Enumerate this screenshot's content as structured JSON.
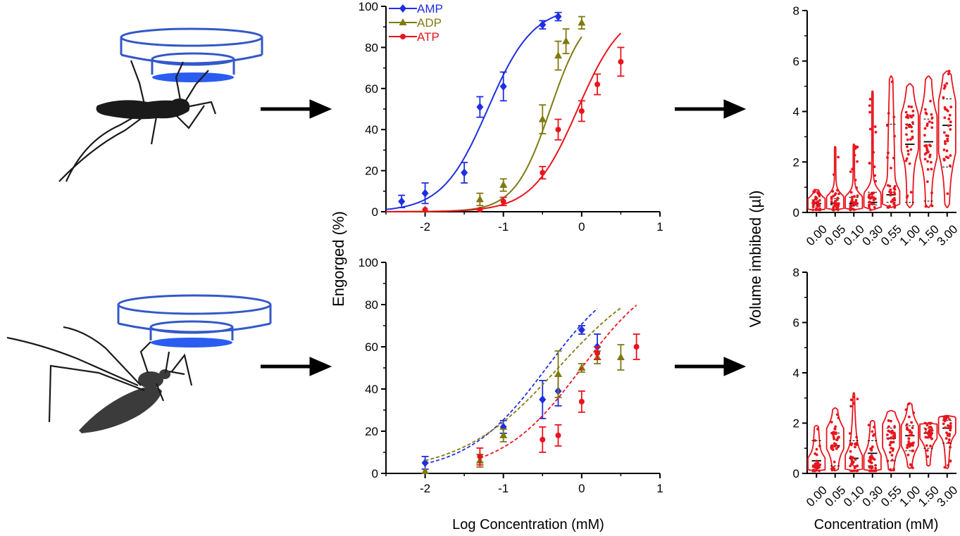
{
  "colors": {
    "amp": "#1f2ee0",
    "adp": "#7f7a10",
    "atp": "#e8141c",
    "violin": "#e8141c",
    "axis": "#000000",
    "silhouette": "#1a1a1a",
    "silhouette2": "#3b3b3b",
    "feeder": "#3358c9",
    "meal": "#2a5cf0"
  },
  "labels": {
    "left_ylabel": "Engorged (%)",
    "left_xlabel": "Log Concentration (mM)",
    "right_ylabel": "Volume imbibed (µl)",
    "right_xlabel": "Concentration (mM)"
  },
  "icons": [
    "mosquito-feeding-icon",
    "mosquito-resting-icon",
    "arrow-right-icon"
  ],
  "chart_data": [
    {
      "type": "line",
      "panel": "top-dose-response",
      "xlim": [
        -2.5,
        1
      ],
      "ylim": [
        0,
        100
      ],
      "xticks": [
        -2,
        -1,
        0,
        1
      ],
      "yticks": [
        0,
        20,
        40,
        60,
        80,
        100
      ],
      "legend": [
        "AMP",
        "ADP",
        "ATP"
      ],
      "series": [
        {
          "name": "AMP",
          "marker": "diamond",
          "key": "amp",
          "ec50": -1.2,
          "hill": 1.5,
          "points": [
            {
              "x": -2.3,
              "y": 5,
              "err": 3
            },
            {
              "x": -2.0,
              "y": 9,
              "err": 5
            },
            {
              "x": -1.5,
              "y": 19,
              "err": 5
            },
            {
              "x": -1.3,
              "y": 51,
              "err": 5
            },
            {
              "x": -1.0,
              "y": 61,
              "err": 7
            },
            {
              "x": -0.5,
              "y": 91,
              "err": 2
            },
            {
              "x": -0.3,
              "y": 95,
              "err": 2
            }
          ]
        },
        {
          "name": "ADP",
          "marker": "triangle",
          "key": "adp",
          "ec50": -0.4,
          "hill": 1.9,
          "points": [
            {
              "x": -2.0,
              "y": 1,
              "err": 0
            },
            {
              "x": -1.3,
              "y": 6,
              "err": 3
            },
            {
              "x": -1.0,
              "y": 13,
              "err": 3
            },
            {
              "x": -0.5,
              "y": 45,
              "err": 7
            },
            {
              "x": -0.3,
              "y": 76,
              "err": 7
            },
            {
              "x": -0.2,
              "y": 83,
              "err": 6
            },
            {
              "x": 0.0,
              "y": 92,
              "err": 3
            }
          ]
        },
        {
          "name": "ATP",
          "marker": "circle",
          "key": "atp",
          "ec50": -0.05,
          "hill": 1.5,
          "points": [
            {
              "x": -2.0,
              "y": 1,
              "err": 0
            },
            {
              "x": -1.3,
              "y": 1,
              "err": 0
            },
            {
              "x": -1.0,
              "y": 5,
              "err": 2
            },
            {
              "x": -0.5,
              "y": 19,
              "err": 3
            },
            {
              "x": -0.3,
              "y": 40,
              "err": 5
            },
            {
              "x": 0.0,
              "y": 49,
              "err": 5
            },
            {
              "x": 0.2,
              "y": 62,
              "err": 5
            },
            {
              "x": 0.5,
              "y": 73,
              "err": 7
            }
          ]
        }
      ]
    },
    {
      "type": "line",
      "panel": "bottom-dose-response",
      "xlim": [
        -2.5,
        1
      ],
      "ylim": [
        0,
        100
      ],
      "xticks": [
        -2,
        -1,
        0,
        1
      ],
      "yticks": [
        0,
        20,
        40,
        60,
        80,
        100
      ],
      "dashed_fits": true,
      "series": [
        {
          "name": "AMP",
          "marker": "diamond",
          "key": "amp",
          "ec50": -0.45,
          "hill": 0.85,
          "top": 100,
          "fit_xmax": 0.2,
          "points": [
            {
              "x": -2.0,
              "y": 5,
              "err": 3
            },
            {
              "x": -1.0,
              "y": 22,
              "err": 3
            },
            {
              "x": -0.5,
              "y": 35,
              "err": 9
            },
            {
              "x": -0.3,
              "y": 39,
              "err": 7
            },
            {
              "x": 0.0,
              "y": 68,
              "err": 2
            },
            {
              "x": 0.2,
              "y": 60,
              "err": 6
            }
          ]
        },
        {
          "name": "ADP",
          "marker": "triangle",
          "key": "adp",
          "ec50": -0.3,
          "hill": 0.7,
          "top": 100,
          "fit_xmax": 0.5,
          "points": [
            {
              "x": -2.0,
              "y": 1,
              "err": 0
            },
            {
              "x": -1.3,
              "y": 6,
              "err": 3
            },
            {
              "x": -1.0,
              "y": 18,
              "err": 3
            },
            {
              "x": -0.3,
              "y": 47,
              "err": 11
            },
            {
              "x": 0.0,
              "y": 50,
              "err": 2
            },
            {
              "x": 0.2,
              "y": 55,
              "err": 3
            },
            {
              "x": 0.5,
              "y": 55,
              "err": 6
            }
          ]
        },
        {
          "name": "ATP",
          "marker": "circle",
          "key": "atp",
          "ec50": 0.0,
          "hill": 0.85,
          "top": 100,
          "fit_xmin": -1.3,
          "fit_xmax": 0.7,
          "points": [
            {
              "x": -1.3,
              "y": 8,
              "err": 4
            },
            {
              "x": -0.5,
              "y": 16,
              "err": 6
            },
            {
              "x": -0.3,
              "y": 18,
              "err": 5
            },
            {
              "x": 0.0,
              "y": 34,
              "err": 5
            },
            {
              "x": 0.2,
              "y": 57,
              "err": 3
            },
            {
              "x": 0.7,
              "y": 60,
              "err": 6
            }
          ]
        }
      ]
    },
    {
      "type": "violin",
      "panel": "top-volume",
      "ylim": [
        0,
        8
      ],
      "yticks": [
        0,
        2,
        4,
        6,
        8
      ],
      "categories": [
        "0.00",
        "0.05",
        "0.10",
        "0.30",
        "0.55",
        "1.00",
        "1.50",
        "3.00"
      ],
      "groups": [
        {
          "min": 0.1,
          "max": 0.9,
          "median": 0.35,
          "q1": 0.25,
          "q3": 0.5,
          "bulk": [
            0.35,
            0.2
          ]
        },
        {
          "min": 0.1,
          "max": 2.6,
          "median": 0.35,
          "q1": 0.3,
          "q3": 0.55,
          "bulk": [
            0.4,
            0.25
          ]
        },
        {
          "min": 0.1,
          "max": 2.7,
          "median": 0.35,
          "q1": 0.25,
          "q3": 0.6,
          "bulk": [
            0.4,
            0.25
          ]
        },
        {
          "min": 0.1,
          "max": 4.8,
          "median": 0.4,
          "q1": 0.3,
          "q3": 0.8,
          "bulk": [
            0.5,
            0.3
          ]
        },
        {
          "min": 0.2,
          "max": 5.4,
          "median": 0.7,
          "q1": 0.4,
          "q3": 3.5,
          "bulk": [
            0.5,
            0.35
          ]
        },
        {
          "min": 0.2,
          "max": 5.1,
          "median": 2.7,
          "q1": 0.4,
          "q3": 3.5,
          "bulk": [
            3.2,
            0.7
          ]
        },
        {
          "min": 0.2,
          "max": 5.4,
          "median": 2.8,
          "q1": 0.45,
          "q3": 3.7,
          "bulk": [
            3.0,
            0.8
          ]
        },
        {
          "min": 0.2,
          "max": 5.6,
          "median": 3.45,
          "q1": 1.8,
          "q3": 4.5,
          "bulk": [
            3.4,
            1.0
          ]
        }
      ]
    },
    {
      "type": "violin",
      "panel": "bottom-volume",
      "ylim": [
        0,
        8
      ],
      "yticks": [
        0,
        2,
        4,
        6,
        8
      ],
      "categories": [
        "0.00",
        "0.05",
        "0.10",
        "0.30",
        "0.55",
        "1.00",
        "1.50",
        "3.00"
      ],
      "xlabel": "Concentration (mM)",
      "groups": [
        {
          "min": 0.1,
          "max": 1.9,
          "median": 0.5,
          "q1": 0.25,
          "q3": 1.3,
          "bulk": [
            0.3,
            0.3
          ]
        },
        {
          "min": 0.1,
          "max": 2.6,
          "median": 1.1,
          "q1": 0.3,
          "q3": 1.6,
          "bulk": [
            1.4,
            0.4
          ]
        },
        {
          "min": 0.1,
          "max": 3.2,
          "median": 0.6,
          "q1": 0.3,
          "q3": 1.3,
          "bulk": [
            0.3,
            0.4
          ]
        },
        {
          "min": 0.1,
          "max": 2.1,
          "median": 0.8,
          "q1": 0.3,
          "q3": 1.3,
          "bulk": [
            0.3,
            0.4
          ]
        },
        {
          "min": 0.1,
          "max": 2.5,
          "median": 1.4,
          "q1": 0.5,
          "q3": 1.8,
          "bulk": [
            1.5,
            0.45
          ]
        },
        {
          "min": 0.2,
          "max": 2.8,
          "median": 1.5,
          "q1": 0.9,
          "q3": 1.9,
          "bulk": [
            1.5,
            0.4
          ]
        },
        {
          "min": 0.3,
          "max": 2.0,
          "median": 1.6,
          "q1": 1.0,
          "q3": 1.8,
          "bulk": [
            1.7,
            0.3
          ]
        },
        {
          "min": 0.2,
          "max": 2.3,
          "median": 1.8,
          "q1": 1.2,
          "q3": 2.1,
          "bulk": [
            1.9,
            0.3
          ]
        }
      ]
    }
  ]
}
